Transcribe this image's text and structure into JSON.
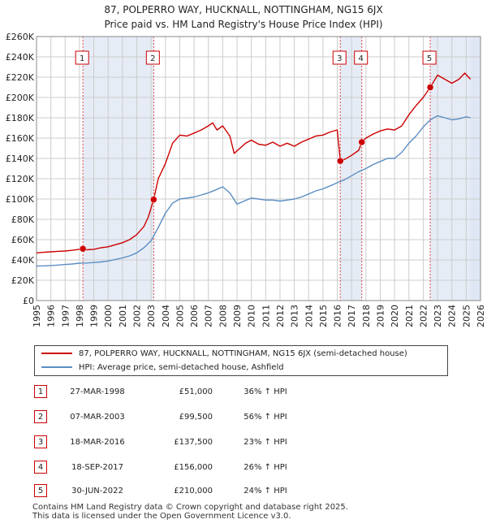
{
  "title_line1": "87, POLPERRO WAY, HUCKNALL, NOTTINGHAM, NG15 6JX",
  "title_line2": "Price paid vs. HM Land Registry's House Price Index (HPI)",
  "legend": {
    "property": "87, POLPERRO WAY, HUCKNALL, NOTTINGHAM, NG15 6JX (semi-detached house)",
    "hpi": "HPI: Average price, semi-detached house, Ashfield"
  },
  "colors": {
    "property": "#cc0000",
    "hpi": "#5b8ec4",
    "shade": "#dde6f3",
    "vline": "#dd4444"
  },
  "chart_data": {
    "type": "line",
    "xlim": [
      1995,
      2026
    ],
    "ylim": [
      0,
      260000
    ],
    "x_ticks": [
      1995,
      1996,
      1997,
      1998,
      1999,
      2000,
      2001,
      2002,
      2003,
      2004,
      2005,
      2006,
      2007,
      2008,
      2009,
      2010,
      2011,
      2012,
      2013,
      2014,
      2015,
      2016,
      2017,
      2018,
      2019,
      2020,
      2021,
      2022,
      2023,
      2024,
      2025,
      2026
    ],
    "y_ticks": [
      0,
      20000,
      40000,
      60000,
      80000,
      100000,
      120000,
      140000,
      160000,
      180000,
      200000,
      220000,
      240000,
      260000
    ],
    "y_tick_labels": [
      "£0",
      "£20K",
      "£40K",
      "£60K",
      "£80K",
      "£100K",
      "£120K",
      "£140K",
      "£160K",
      "£180K",
      "£200K",
      "£220K",
      "£240K",
      "£260K"
    ],
    "series": [
      {
        "name": "87, POLPERRO WAY, HUCKNALL, NOTTINGHAM, NG15 6JX (semi-detached house)",
        "x": [
          1995.0,
          1995.5,
          1996.0,
          1996.5,
          1997.0,
          1997.5,
          1998.0,
          1998.24,
          1998.5,
          1999.0,
          1999.5,
          2000.0,
          2000.5,
          2001.0,
          2001.5,
          2002.0,
          2002.5,
          2002.8,
          2003.18,
          2003.5,
          2004.0,
          2004.5,
          2005.0,
          2005.5,
          2006.0,
          2006.5,
          2007.0,
          2007.3,
          2007.6,
          2008.0,
          2008.5,
          2008.8,
          2009.2,
          2009.6,
          2010.0,
          2010.5,
          2011.0,
          2011.5,
          2012.0,
          2012.5,
          2013.0,
          2013.5,
          2014.0,
          2014.5,
          2015.0,
          2015.5,
          2016.0,
          2016.21,
          2016.5,
          2017.0,
          2017.5,
          2017.71,
          2018.0,
          2018.5,
          2019.0,
          2019.5,
          2020.0,
          2020.5,
          2021.0,
          2021.5,
          2022.0,
          2022.49,
          2022.7,
          2023.0,
          2023.5,
          2024.0,
          2024.5,
          2024.9,
          2025.3
        ],
        "values": [
          47000,
          47500,
          48000,
          48500,
          48800,
          49500,
          50500,
          51000,
          50000,
          50500,
          52000,
          53000,
          55000,
          57000,
          60000,
          65000,
          73000,
          82000,
          99500,
          120000,
          135000,
          155000,
          163000,
          162000,
          165000,
          168000,
          172000,
          175000,
          168000,
          172000,
          162000,
          145000,
          150000,
          155000,
          158000,
          154000,
          153000,
          156000,
          152000,
          155000,
          152000,
          156000,
          159000,
          162000,
          163000,
          166000,
          168000,
          137500,
          139000,
          143000,
          148000,
          156000,
          160000,
          164000,
          167000,
          169000,
          168000,
          172000,
          183000,
          192000,
          200000,
          210000,
          215000,
          222000,
          218000,
          214000,
          218000,
          224000,
          218000
        ]
      },
      {
        "name": "HPI: Average price, semi-detached house, Ashfield",
        "x": [
          1995.0,
          1995.5,
          1996.0,
          1996.5,
          1997.0,
          1997.5,
          1998.0,
          1998.5,
          1999.0,
          1999.5,
          2000.0,
          2000.5,
          2001.0,
          2001.5,
          2002.0,
          2002.5,
          2003.0,
          2003.5,
          2004.0,
          2004.5,
          2005.0,
          2005.5,
          2006.0,
          2006.5,
          2007.0,
          2007.5,
          2008.0,
          2008.5,
          2009.0,
          2009.5,
          2010.0,
          2010.5,
          2011.0,
          2011.5,
          2012.0,
          2012.5,
          2013.0,
          2013.5,
          2014.0,
          2014.5,
          2015.0,
          2015.5,
          2016.0,
          2016.5,
          2017.0,
          2017.5,
          2018.0,
          2018.5,
          2019.0,
          2019.5,
          2020.0,
          2020.5,
          2021.0,
          2021.5,
          2022.0,
          2022.5,
          2023.0,
          2023.5,
          2024.0,
          2024.5,
          2025.0,
          2025.3
        ],
        "values": [
          34000,
          34200,
          34500,
          35000,
          35500,
          36000,
          36800,
          37000,
          37500,
          38000,
          39000,
          40500,
          42000,
          44000,
          47000,
          52000,
          59000,
          72000,
          86000,
          96000,
          100000,
          101000,
          102000,
          104000,
          106000,
          109000,
          112000,
          106000,
          95000,
          98000,
          101000,
          100000,
          99000,
          99000,
          98000,
          99000,
          100000,
          102000,
          105000,
          108000,
          110000,
          113000,
          116000,
          119000,
          123000,
          127000,
          130000,
          134000,
          137000,
          140000,
          140000,
          146000,
          155000,
          162000,
          171000,
          178000,
          182000,
          180000,
          178000,
          179000,
          181000,
          180000
        ]
      }
    ],
    "sales": [
      {
        "label": "1",
        "x": 1998.24,
        "value": 51000
      },
      {
        "label": "2",
        "x": 2003.18,
        "value": 99500
      },
      {
        "label": "3",
        "x": 2016.21,
        "value": 137500
      },
      {
        "label": "4",
        "x": 2017.71,
        "value": 156000
      },
      {
        "label": "5",
        "x": 2022.49,
        "value": 210000
      }
    ],
    "shaded_ranges": [
      [
        1998.24,
        2003.18
      ],
      [
        2016.21,
        2017.71
      ],
      [
        2022.49,
        2026
      ],
      [
        2025.3,
        2026
      ]
    ]
  },
  "transactions": [
    {
      "num": "1",
      "date": "27-MAR-1998",
      "price": "£51,000",
      "hpi": "36% ↑ HPI"
    },
    {
      "num": "2",
      "date": "07-MAR-2003",
      "price": "£99,500",
      "hpi": "56% ↑ HPI"
    },
    {
      "num": "3",
      "date": "18-MAR-2016",
      "price": "£137,500",
      "hpi": "23% ↑ HPI"
    },
    {
      "num": "4",
      "date": "18-SEP-2017",
      "price": "£156,000",
      "hpi": "26% ↑ HPI"
    },
    {
      "num": "5",
      "date": "30-JUN-2022",
      "price": "£210,000",
      "hpi": "24% ↑ HPI"
    }
  ],
  "footer": {
    "line1": "Contains HM Land Registry data © Crown copyright and database right 2025.",
    "line2": "This data is licensed under the Open Government Licence v3.0."
  }
}
